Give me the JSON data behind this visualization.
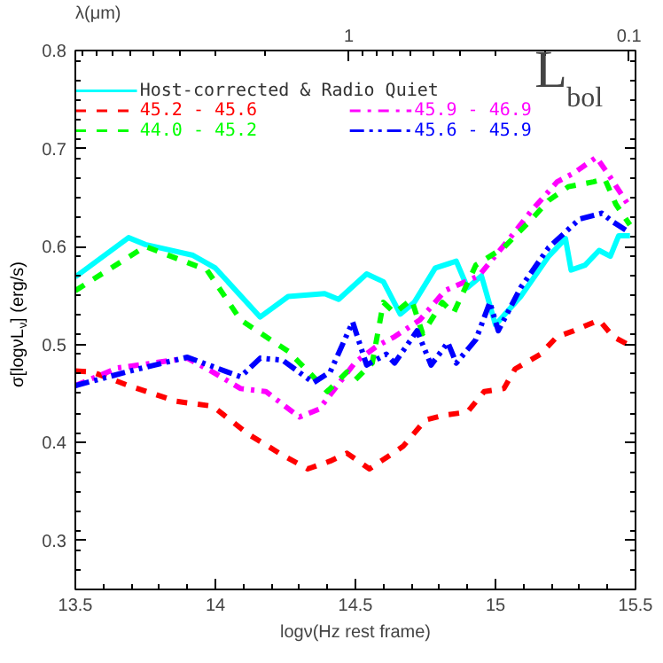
{
  "chart_data": {
    "type": "line",
    "xlabel": "logν(Hz rest frame)",
    "ylabel": "σ[logνL$_{ν}$] (erg/s)",
    "x2label": "λ(μm)",
    "xlim": [
      13.5,
      15.5
    ],
    "xticks": [
      13.5,
      14,
      14.5,
      15,
      15.5
    ],
    "ylim": [
      0.25,
      0.8
    ],
    "yticks": [
      0.3,
      0.4,
      0.5,
      0.6,
      0.7,
      0.8
    ],
    "x2lim": [
      9.48,
      0.0948
    ],
    "x2ticks": [
      1,
      0.1
    ],
    "log": "x2",
    "grid": false,
    "legend": "top left",
    "marker": "none",
    "annotations": [
      "L$_{bol}$"
    ],
    "series": [
      {
        "name": "Host-corrected & Radio Quiet",
        "color": "#00ffff",
        "line_style": "solid",
        "x": [
          13.5,
          13.69,
          13.75,
          13.92,
          14.0,
          14.16,
          14.26,
          14.39,
          14.44,
          14.54,
          14.6,
          14.66,
          14.71,
          14.785,
          14.86,
          14.9,
          14.95,
          15.0,
          15.09,
          15.19,
          15.25,
          15.27,
          15.32,
          15.37,
          15.41,
          15.44,
          15.48
        ],
        "values": [
          0.569,
          0.609,
          0.602,
          0.591,
          0.578,
          0.528,
          0.549,
          0.552,
          0.546,
          0.572,
          0.564,
          0.531,
          0.543,
          0.578,
          0.585,
          0.558,
          0.57,
          0.52,
          0.549,
          0.59,
          0.608,
          0.576,
          0.581,
          0.596,
          0.59,
          0.611,
          0.611
        ]
      },
      {
        "name": "45.2 - 45.6",
        "color": "#ff0000",
        "line_style": "dashed",
        "x": [
          13.5,
          13.56,
          13.69,
          13.86,
          13.99,
          14.12,
          14.24,
          14.33,
          14.41,
          14.47,
          14.55,
          14.67,
          14.75,
          14.82,
          14.9,
          14.96,
          15.03,
          15.07,
          15.16,
          15.22,
          15.28,
          15.37,
          15.42,
          15.48
        ],
        "values": [
          0.473,
          0.472,
          0.458,
          0.442,
          0.437,
          0.408,
          0.387,
          0.373,
          0.381,
          0.389,
          0.373,
          0.396,
          0.423,
          0.428,
          0.431,
          0.452,
          0.455,
          0.475,
          0.49,
          0.508,
          0.514,
          0.525,
          0.508,
          0.499
        ]
      },
      {
        "name": "45.9 - 46.9",
        "color": "#ff00ff",
        "line_style": "dashdot",
        "x": [
          13.5,
          13.65,
          13.9,
          13.99,
          14.09,
          14.18,
          14.3,
          14.37,
          14.5,
          14.58,
          14.64,
          14.73,
          14.82,
          14.94,
          15.05,
          15.13,
          15.22,
          15.28,
          15.36,
          15.4,
          15.48
        ],
        "values": [
          0.458,
          0.476,
          0.486,
          0.472,
          0.455,
          0.452,
          0.426,
          0.434,
          0.482,
          0.499,
          0.508,
          0.525,
          0.555,
          0.57,
          0.608,
          0.637,
          0.666,
          0.675,
          0.691,
          0.675,
          0.64
        ]
      },
      {
        "name": "44.0 - 45.2",
        "color": "#00ff00",
        "line_style": "dashed",
        "x": [
          13.5,
          13.75,
          13.97,
          14.09,
          14.26,
          14.35,
          14.4,
          14.47,
          14.5,
          14.56,
          14.6,
          14.64,
          14.7,
          14.74,
          14.81,
          14.85,
          14.93,
          15.03,
          15.13,
          15.19,
          15.26,
          15.35,
          15.39,
          15.43,
          15.48
        ],
        "values": [
          0.555,
          0.6,
          0.576,
          0.525,
          0.493,
          0.467,
          0.452,
          0.472,
          0.464,
          0.481,
          0.543,
          0.532,
          0.546,
          0.511,
          0.543,
          0.532,
          0.581,
          0.599,
          0.628,
          0.647,
          0.661,
          0.666,
          0.669,
          0.643,
          0.622
        ]
      },
      {
        "name": "45.6 - 45.9",
        "color": "#0000ff",
        "line_style": "dashdotdot",
        "x": [
          13.5,
          13.71,
          13.9,
          14.09,
          14.16,
          14.24,
          14.35,
          14.41,
          14.49,
          14.54,
          14.61,
          14.64,
          14.72,
          14.77,
          14.83,
          14.86,
          14.93,
          14.98,
          15.01,
          15.09,
          15.19,
          15.27,
          15.3,
          15.38,
          15.42,
          15.48
        ],
        "values": [
          0.458,
          0.474,
          0.487,
          0.467,
          0.486,
          0.484,
          0.461,
          0.472,
          0.523,
          0.479,
          0.49,
          0.481,
          0.514,
          0.479,
          0.502,
          0.481,
          0.505,
          0.543,
          0.514,
          0.558,
          0.599,
          0.62,
          0.628,
          0.634,
          0.625,
          0.614
        ]
      }
    ]
  }
}
